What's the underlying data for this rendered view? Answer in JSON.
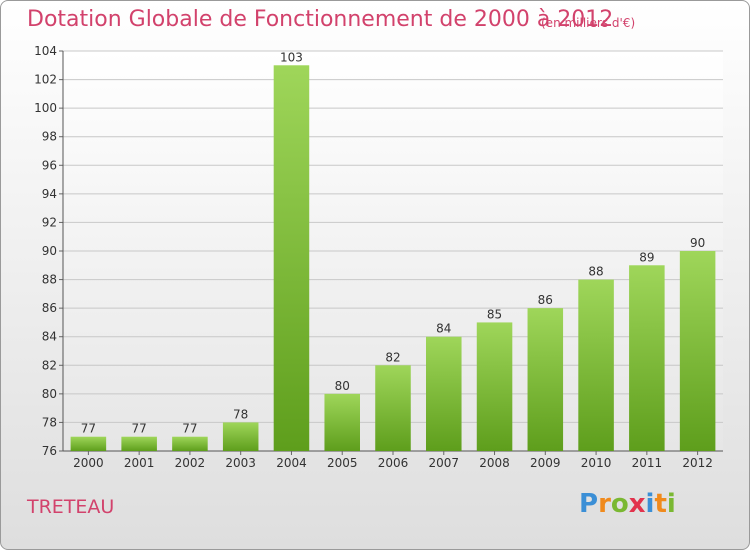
{
  "chart_data": {
    "type": "bar",
    "title": "Dotation Globale de Fonctionnement de 2000 à 2012",
    "subtitle": "(en milliers d'€)",
    "categories": [
      "2000",
      "2001",
      "2002",
      "2003",
      "2004",
      "2005",
      "2006",
      "2007",
      "2008",
      "2009",
      "2010",
      "2011",
      "2012"
    ],
    "values": [
      77,
      77,
      77,
      78,
      103,
      80,
      82,
      84,
      85,
      86,
      88,
      89,
      90
    ],
    "ylim": [
      76,
      104
    ],
    "ytick_step": 2,
    "grid": true,
    "bar_color": "#7ec33d"
  },
  "commune": "TRETEAU",
  "logo": {
    "text": "Proxiti",
    "letters": [
      {
        "ch": "P",
        "color": "#3b8fd6"
      },
      {
        "ch": "r",
        "color": "#f08a1c"
      },
      {
        "ch": "o",
        "color": "#7ab832"
      },
      {
        "ch": "x",
        "color": "#e2334d"
      },
      {
        "ch": "i",
        "color": "#3b8fd6"
      },
      {
        "ch": "t",
        "color": "#f08a1c"
      },
      {
        "ch": "i",
        "color": "#7ab832"
      }
    ]
  }
}
